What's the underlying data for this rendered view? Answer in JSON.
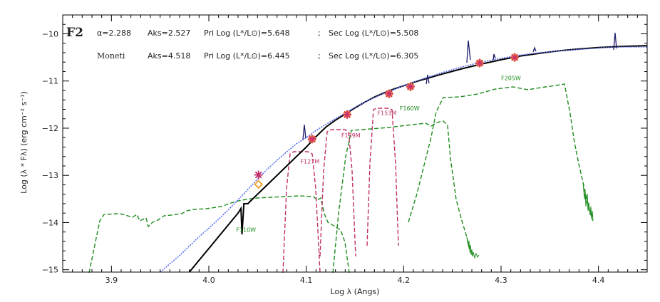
{
  "chart_data": {
    "type": "line",
    "title": "F2",
    "xlabel": "Log λ (Angs)",
    "ylabel": "Log (λ * Fλ)   (erg cm⁻² s⁻¹)",
    "xlim": [
      3.85,
      4.45
    ],
    "ylim": [
      -15.05,
      -9.6
    ],
    "grid": false,
    "x_ticks": [
      "3.9",
      "4.0",
      "4.1",
      "4.2",
      "4.3",
      "4.4"
    ],
    "x_tick_values": [
      3.9,
      4.0,
      4.1,
      4.2,
      4.3,
      4.4
    ],
    "y_ticks": [
      "−10",
      "−11",
      "−12",
      "−13",
      "−14",
      "−15"
    ],
    "y_tick_values": [
      -10,
      -11,
      -12,
      -13,
      -14,
      -15
    ],
    "annotations": {
      "line1_label": "α=2.288",
      "line1_aks": "Aks=2.527",
      "line1_pri": "Pri  Log (L*/L⊙)=5.648",
      "line1_sep": ";",
      "line1_sec": "Sec  Log (L*/L⊙)=5.508",
      "line2_label": "Moneti",
      "line2_aks": "Aks=4.518",
      "line2_pri": "Pri  Log (L*/L⊙)=6.445",
      "line2_sep": ";",
      "line2_sec": "Sec  Log (L*/L⊙)=6.305"
    },
    "series": [
      {
        "color": "#000000",
        "style": "solid",
        "x": [
          3.98,
          3.99,
          4.0,
          4.01,
          4.02,
          4.03,
          4.033,
          4.034,
          4.036,
          4.04,
          4.05,
          4.06,
          4.07,
          4.08,
          4.09,
          4.1,
          4.11,
          4.12,
          4.13,
          4.14,
          4.15,
          4.16,
          4.17,
          4.18,
          4.19,
          4.2,
          4.21,
          4.22,
          4.24,
          4.26,
          4.28,
          4.3,
          4.32,
          4.34,
          4.36,
          4.38,
          4.4,
          4.42,
          4.45
        ],
        "y": [
          -15.05,
          -14.8,
          -14.55,
          -14.3,
          -14.05,
          -13.8,
          -13.7,
          -14.25,
          -13.6,
          -13.6,
          -13.4,
          -13.2,
          -13.0,
          -12.8,
          -12.6,
          -12.4,
          -12.18,
          -11.98,
          -11.83,
          -11.7,
          -11.57,
          -11.45,
          -11.34,
          -11.25,
          -11.17,
          -11.1,
          -11.03,
          -10.97,
          -10.85,
          -10.74,
          -10.64,
          -10.55,
          -10.47,
          -10.41,
          -10.36,
          -10.32,
          -10.29,
          -10.27,
          -10.25
        ]
      },
      {
        "color": "#5a6cf0",
        "style": "dotted",
        "x": [
          3.95,
          3.97,
          3.99,
          4.0,
          4.01,
          4.02,
          4.03,
          4.04,
          4.05,
          4.06,
          4.07,
          4.08,
          4.09,
          4.1,
          4.11,
          4.12,
          4.13,
          4.14,
          4.15,
          4.16,
          4.17,
          4.18,
          4.19,
          4.2,
          4.22,
          4.24,
          4.26,
          4.28,
          4.3,
          4.32,
          4.34,
          4.36,
          4.38,
          4.4,
          4.42,
          4.45
        ],
        "y": [
          -15.05,
          -14.7,
          -14.3,
          -14.12,
          -13.93,
          -13.73,
          -13.52,
          -13.3,
          -13.08,
          -12.87,
          -12.68,
          -12.5,
          -12.33,
          -12.2,
          -12.05,
          -11.92,
          -11.8,
          -11.68,
          -11.56,
          -11.45,
          -11.35,
          -11.26,
          -11.18,
          -11.1,
          -10.95,
          -10.82,
          -10.7,
          -10.6,
          -10.52,
          -10.45,
          -10.4,
          -10.36,
          -10.33,
          -10.3,
          -10.28,
          -10.28
        ]
      }
    ],
    "photometry_stars": {
      "x": [
        4.051,
        4.106,
        4.142,
        4.185,
        4.207,
        4.278,
        4.314
      ],
      "y": [
        -12.99,
        -12.23,
        -11.71,
        -11.27,
        -11.12,
        -10.62,
        -10.5
      ]
    },
    "photometry_diamond": {
      "x": 4.051,
      "y": -13.19
    },
    "filters": [
      {
        "label": "F110W",
        "color": "#1e8c1e",
        "label_x": 4.028,
        "label_y": -14.2
      },
      {
        "label": "F127M",
        "color": "#c0306a",
        "label_x": 4.094,
        "label_y": -12.75
      },
      {
        "label": "F139M",
        "color": "#c0306a",
        "label_x": 4.136,
        "label_y": -12.2
      },
      {
        "label": "F153M",
        "color": "#c0306a",
        "label_x": 4.173,
        "label_y": -11.72
      },
      {
        "label": "F160W",
        "color": "#1e8c1e",
        "label_x": 4.196,
        "label_y": -11.62
      },
      {
        "label": "F205W",
        "color": "#1e8c1e",
        "label_x": 4.3,
        "label_y": -10.98
      }
    ]
  }
}
